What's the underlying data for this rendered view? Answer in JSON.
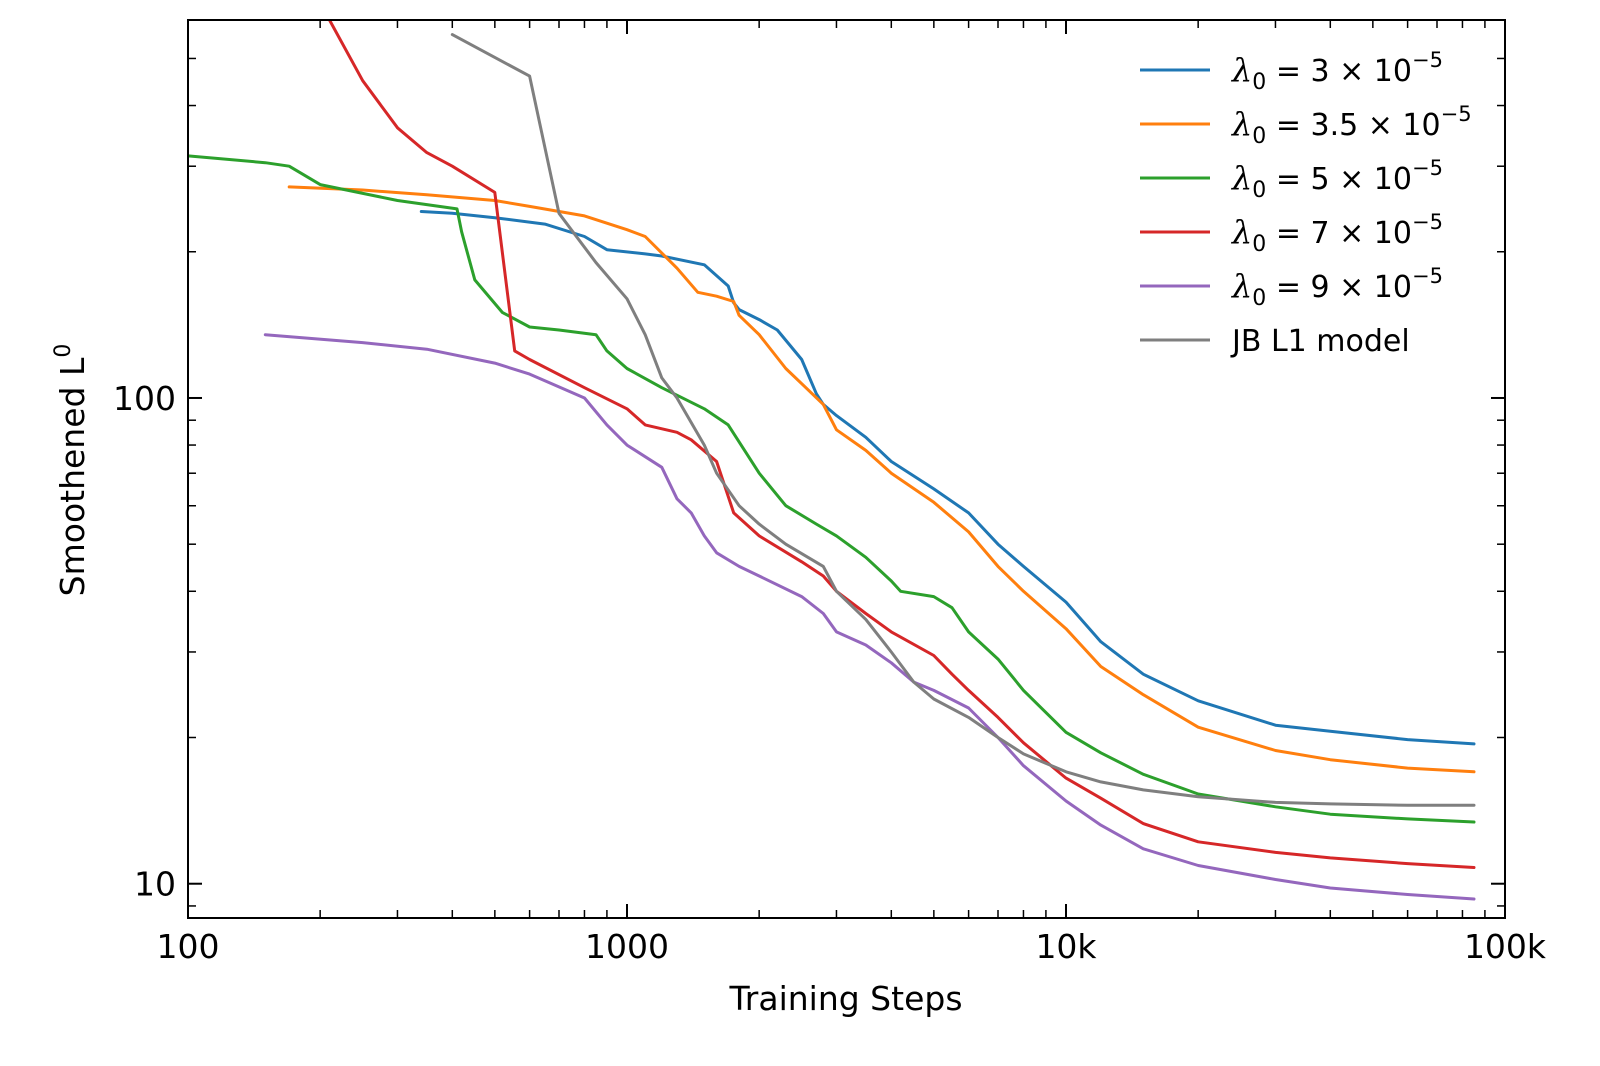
{
  "chart_data": {
    "type": "line",
    "title": "",
    "xlabel": "Training Steps",
    "ylabel": "Smoothened L",
    "ylabel_superscript": "0",
    "xscale": "log",
    "yscale": "log",
    "xlim": [
      100,
      100000
    ],
    "ylim": [
      8.5,
      600
    ],
    "x_ticks": [
      {
        "value": 100,
        "label": "100"
      },
      {
        "value": 1000,
        "label": "1000"
      },
      {
        "value": 10000,
        "label": "10k"
      },
      {
        "value": 100000,
        "label": "100k"
      }
    ],
    "y_ticks": [
      {
        "value": 10,
        "label": "10"
      },
      {
        "value": 100,
        "label": "100"
      }
    ],
    "grid": false,
    "legend_position": "top-right",
    "series": [
      {
        "name": "λ0 = 3 × 10^-5",
        "legend": {
          "symbol": "λ",
          "sub": "0",
          "eq": " = 3 × 10",
          "exp": "−5"
        },
        "color": "#1f77b4",
        "x": [
          340,
          400,
          500,
          650,
          800,
          900,
          1100,
          1200,
          1500,
          1700,
          1750,
          1800,
          2000,
          2200,
          2500,
          2700,
          2800,
          3000,
          3500,
          4000,
          5000,
          6000,
          7000,
          8000,
          10000,
          12000,
          15000,
          20000,
          30000,
          40000,
          60000,
          85000
        ],
        "y": [
          242,
          240,
          235,
          228,
          215,
          202,
          198,
          196,
          188,
          170,
          157,
          152,
          145,
          138,
          120,
          102,
          97,
          92,
          83,
          74,
          65,
          58,
          50,
          45,
          38,
          31.5,
          27,
          23.8,
          21.2,
          20.6,
          19.8,
          19.4
        ]
      },
      {
        "name": "λ0 = 3.5 × 10^-5",
        "legend": {
          "symbol": "λ",
          "sub": "0",
          "eq": " = 3.5 × 10",
          "exp": "−5"
        },
        "color": "#ff7f0e",
        "x": [
          170,
          250,
          350,
          500,
          600,
          800,
          1000,
          1100,
          1300,
          1450,
          1600,
          1750,
          1800,
          2000,
          2300,
          2500,
          2800,
          3000,
          3500,
          4000,
          5000,
          6000,
          7000,
          8000,
          10000,
          12000,
          15000,
          20000,
          30000,
          40000,
          60000,
          85000
        ],
        "y": [
          272,
          268,
          262,
          255,
          248,
          237,
          222,
          215,
          185,
          165,
          162,
          158,
          148,
          135,
          115,
          107,
          97,
          86,
          78,
          70,
          61,
          53,
          45,
          40,
          33.5,
          28,
          24.5,
          21,
          18.8,
          18,
          17.3,
          17
        ]
      },
      {
        "name": "λ0 = 5 × 10^-5",
        "legend": {
          "symbol": "λ",
          "sub": "0",
          "eq": " = 5 × 10",
          "exp": "−5"
        },
        "color": "#2ca02c",
        "x": [
          100,
          150,
          170,
          200,
          300,
          410,
          420,
          450,
          520,
          600,
          700,
          850,
          900,
          1000,
          1200,
          1500,
          1700,
          2000,
          2300,
          2700,
          3000,
          3500,
          4000,
          4200,
          5000,
          5500,
          6000,
          7000,
          8000,
          10000,
          12000,
          15000,
          20000,
          30000,
          40000,
          60000,
          85000
        ],
        "y": [
          315,
          305,
          300,
          275,
          255,
          245,
          220,
          175,
          150,
          140,
          138,
          135,
          125,
          115,
          105,
          95,
          88,
          70,
          60,
          55,
          52,
          47,
          42,
          40,
          39,
          37,
          33,
          29,
          25,
          20.5,
          18.6,
          16.8,
          15.3,
          14.4,
          13.9,
          13.6,
          13.4
        ]
      },
      {
        "name": "λ0 = 7 × 10^-5",
        "legend": {
          "symbol": "λ",
          "sub": "0",
          "eq": " = 7 × 10",
          "exp": "−5"
        },
        "color": "#d62728",
        "x": [
          210,
          250,
          300,
          350,
          400,
          500,
          555,
          600,
          800,
          1000,
          1100,
          1300,
          1400,
          1600,
          1750,
          2000,
          2500,
          2800,
          3000,
          3500,
          4000,
          5000,
          5500,
          6000,
          7000,
          8000,
          10000,
          12000,
          15000,
          20000,
          30000,
          40000,
          60000,
          85000
        ],
        "y": [
          600,
          450,
          360,
          320,
          300,
          265,
          125,
          120,
          105,
          95,
          88,
          85,
          82,
          74,
          58,
          52,
          46,
          43,
          40,
          36,
          33,
          29.5,
          27,
          25,
          22,
          19.5,
          16.5,
          15,
          13.3,
          12.2,
          11.6,
          11.3,
          11,
          10.8
        ]
      },
      {
        "name": "λ0 = 9 × 10^-5",
        "legend": {
          "symbol": "λ",
          "sub": "0",
          "eq": " = 9 × 10",
          "exp": "−5"
        },
        "color": "#9467bd",
        "x": [
          150,
          250,
          350,
          500,
          600,
          800,
          900,
          1000,
          1200,
          1300,
          1400,
          1500,
          1600,
          1800,
          2000,
          2500,
          2800,
          3000,
          3500,
          4000,
          4500,
          5000,
          6000,
          7000,
          8000,
          10000,
          12000,
          15000,
          20000,
          30000,
          40000,
          60000,
          85000
        ],
        "y": [
          135,
          130,
          126,
          118,
          112,
          100,
          88,
          80,
          72,
          62,
          58,
          52,
          48,
          45,
          43,
          39,
          36,
          33,
          31,
          28.5,
          26,
          25,
          23,
          20,
          17.5,
          14.8,
          13.2,
          11.8,
          10.9,
          10.2,
          9.8,
          9.5,
          9.3
        ]
      },
      {
        "name": "JB L1 model",
        "legend": {
          "text": "JB L1 model"
        },
        "color": "#7f7f7f",
        "x": [
          400,
          600,
          700,
          850,
          1000,
          1100,
          1200,
          1300,
          1500,
          1600,
          1800,
          2000,
          2300,
          2800,
          3000,
          3500,
          4000,
          4500,
          5000,
          6000,
          7000,
          8000,
          10000,
          12000,
          15000,
          20000,
          30000,
          40000,
          60000,
          85000
        ],
        "y": [
          560,
          460,
          240,
          190,
          160,
          135,
          110,
          100,
          80,
          70,
          60,
          55,
          50,
          45,
          40,
          35,
          30,
          26,
          24,
          22,
          20,
          18.5,
          17,
          16.2,
          15.6,
          15.1,
          14.7,
          14.6,
          14.5,
          14.5
        ]
      }
    ]
  }
}
